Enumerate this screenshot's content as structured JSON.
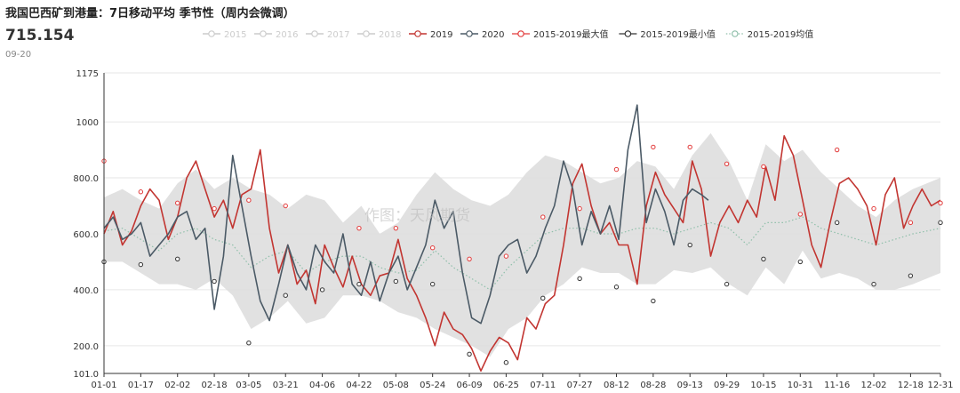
{
  "header": {
    "title": "我国巴西矿到港量：7日移动平均 季节性（周内会微调）",
    "last_value": "715.154",
    "last_date": "09-20"
  },
  "watermark": "作图：天风期货",
  "colors": {
    "s2019": "#c23531",
    "s2020": "#4b5a66",
    "max": "#e23b3b",
    "min": "#333333",
    "mean": "#8fbfaa",
    "band": "#dcdcdc",
    "inactive": "#cccccc",
    "grid": "#e6e6e6"
  },
  "chart_data": {
    "type": "line",
    "title": "我国巴西矿到港量：7日移动平均 季节性（周内会微调）",
    "xlabel": "",
    "ylabel": "",
    "ylim": [
      101,
      1175
    ],
    "y_ticks": [
      "1175",
      "1000",
      "800.0",
      "600.0",
      "400.0",
      "200.0",
      "101.0"
    ],
    "y_tick_values": [
      1175,
      1000,
      800,
      600,
      400,
      200,
      101
    ],
    "x_ticks": [
      "01-01",
      "01-17",
      "02-02",
      "02-18",
      "03-05",
      "03-21",
      "04-06",
      "04-22",
      "05-08",
      "05-24",
      "06-09",
      "06-25",
      "07-11",
      "07-27",
      "08-12",
      "08-28",
      "09-13",
      "09-29",
      "10-15",
      "10-31",
      "11-16",
      "12-02",
      "12-18",
      "12-31"
    ],
    "x_tick_days": [
      1,
      17,
      33,
      49,
      64,
      80,
      96,
      112,
      128,
      144,
      160,
      176,
      192,
      208,
      224,
      240,
      256,
      272,
      288,
      304,
      320,
      336,
      352,
      365
    ],
    "legend": [
      {
        "name": "2015",
        "active": false,
        "kind": "line"
      },
      {
        "name": "2016",
        "active": false,
        "kind": "line"
      },
      {
        "name": "2017",
        "active": false,
        "kind": "line"
      },
      {
        "name": "2018",
        "active": false,
        "kind": "line"
      },
      {
        "name": "2019",
        "active": true,
        "kind": "line",
        "color": "#c23531"
      },
      {
        "name": "2020",
        "active": true,
        "kind": "line",
        "color": "#4b5a66"
      },
      {
        "name": "2015-2019最大值",
        "active": true,
        "kind": "marker",
        "color": "#e23b3b"
      },
      {
        "name": "2015-2019最小值",
        "active": true,
        "kind": "marker",
        "color": "#333333"
      },
      {
        "name": "2015-2019均值",
        "active": true,
        "kind": "dotted",
        "color": "#8fbfaa"
      }
    ],
    "series": [
      {
        "name": "2019",
        "x": [
          1,
          5,
          9,
          13,
          17,
          21,
          25,
          29,
          33,
          37,
          41,
          45,
          49,
          53,
          57,
          61,
          65,
          69,
          73,
          77,
          81,
          85,
          89,
          93,
          97,
          101,
          105,
          109,
          113,
          117,
          121,
          125,
          129,
          133,
          137,
          141,
          145,
          149,
          153,
          157,
          161,
          165,
          169,
          173,
          177,
          181,
          185,
          189,
          193,
          197,
          201,
          205,
          209,
          213,
          217,
          221,
          225,
          229,
          233,
          237,
          241,
          245,
          249,
          253,
          257,
          261,
          265,
          269,
          273,
          277,
          281,
          285,
          289,
          293,
          297,
          301,
          305,
          309,
          313,
          317,
          321,
          325,
          329,
          333,
          337,
          341,
          345,
          349,
          353,
          357,
          361,
          365
        ],
        "values": [
          600,
          680,
          560,
          610,
          700,
          760,
          720,
          580,
          660,
          800,
          860,
          760,
          660,
          720,
          620,
          740,
          760,
          900,
          620,
          460,
          560,
          420,
          470,
          350,
          560,
          480,
          410,
          520,
          420,
          380,
          450,
          460,
          580,
          440,
          380,
          300,
          200,
          320,
          260,
          240,
          190,
          110,
          180,
          230,
          210,
          150,
          300,
          260,
          350,
          380,
          560,
          780,
          850,
          700,
          600,
          640,
          560,
          560,
          420,
          700,
          820,
          740,
          690,
          640,
          860,
          760,
          520,
          640,
          700,
          640,
          720,
          660,
          840,
          720,
          950,
          880,
          720,
          560,
          480,
          640,
          780,
          800,
          760,
          700,
          560,
          740,
          800,
          620,
          700,
          760,
          700,
          720
        ]
      },
      {
        "name": "2020",
        "x": [
          1,
          5,
          9,
          13,
          17,
          21,
          25,
          29,
          33,
          37,
          41,
          45,
          49,
          53,
          57,
          61,
          65,
          69,
          73,
          77,
          81,
          85,
          89,
          93,
          97,
          101,
          105,
          109,
          113,
          117,
          121,
          125,
          129,
          133,
          137,
          141,
          145,
          149,
          153,
          157,
          161,
          165,
          169,
          173,
          177,
          181,
          185,
          189,
          193,
          197,
          201,
          205,
          209,
          213,
          217,
          221,
          225,
          229,
          233,
          237,
          241,
          245,
          249,
          253,
          257,
          261,
          264
        ],
        "values": [
          620,
          660,
          580,
          600,
          640,
          520,
          560,
          600,
          660,
          680,
          580,
          620,
          330,
          520,
          880,
          700,
          520,
          360,
          290,
          420,
          560,
          460,
          400,
          560,
          500,
          460,
          600,
          420,
          380,
          500,
          360,
          460,
          520,
          400,
          480,
          560,
          720,
          620,
          680,
          460,
          300,
          280,
          380,
          520,
          560,
          580,
          460,
          520,
          620,
          700,
          860,
          760,
          560,
          680,
          600,
          700,
          580,
          900,
          1060,
          640,
          760,
          680,
          560,
          720,
          760,
          740,
          720
        ]
      }
    ],
    "band_upper": {
      "x": [
        1,
        9,
        17,
        25,
        33,
        41,
        49,
        57,
        65,
        73,
        81,
        89,
        97,
        105,
        113,
        121,
        129,
        137,
        145,
        153,
        161,
        169,
        177,
        185,
        193,
        201,
        209,
        217,
        225,
        233,
        241,
        249,
        257,
        265,
        273,
        281,
        289,
        297,
        305,
        313,
        321,
        329,
        337,
        345,
        353,
        365
      ],
      "values": [
        730,
        760,
        720,
        690,
        780,
        830,
        760,
        800,
        760,
        740,
        690,
        740,
        720,
        640,
        700,
        600,
        640,
        740,
        820,
        760,
        720,
        700,
        740,
        820,
        880,
        860,
        820,
        780,
        800,
        860,
        840,
        760,
        880,
        960,
        860,
        720,
        920,
        860,
        900,
        820,
        760,
        700,
        660,
        720,
        760,
        800
      ]
    },
    "band_lower": {
      "x": [
        1,
        9,
        17,
        25,
        33,
        41,
        49,
        57,
        65,
        73,
        81,
        89,
        97,
        105,
        113,
        121,
        129,
        137,
        145,
        153,
        161,
        169,
        177,
        185,
        193,
        201,
        209,
        217,
        225,
        233,
        241,
        249,
        257,
        265,
        273,
        281,
        289,
        297,
        305,
        313,
        321,
        329,
        337,
        345,
        353,
        365
      ],
      "values": [
        500,
        500,
        460,
        420,
        420,
        400,
        440,
        380,
        260,
        300,
        360,
        280,
        300,
        380,
        380,
        360,
        320,
        300,
        260,
        230,
        200,
        160,
        260,
        300,
        380,
        420,
        480,
        460,
        460,
        420,
        420,
        470,
        460,
        480,
        420,
        380,
        480,
        420,
        540,
        440,
        460,
        440,
        400,
        400,
        420,
        460
      ]
    },
    "mean": {
      "x": [
        1,
        9,
        17,
        25,
        33,
        41,
        49,
        57,
        65,
        73,
        81,
        89,
        97,
        105,
        113,
        121,
        129,
        137,
        145,
        153,
        161,
        169,
        177,
        185,
        193,
        201,
        209,
        217,
        225,
        233,
        241,
        249,
        257,
        265,
        273,
        281,
        289,
        297,
        305,
        313,
        321,
        329,
        337,
        345,
        353,
        365
      ],
      "values": [
        610,
        620,
        580,
        540,
        600,
        620,
        580,
        560,
        480,
        520,
        540,
        460,
        500,
        520,
        520,
        480,
        460,
        470,
        540,
        480,
        440,
        400,
        480,
        540,
        600,
        620,
        620,
        600,
        600,
        620,
        620,
        600,
        620,
        640,
        620,
        560,
        640,
        640,
        660,
        620,
        600,
        580,
        560,
        580,
        600,
        620
      ]
    },
    "max_points": {
      "x": [
        1,
        17,
        33,
        49,
        64,
        80,
        112,
        128,
        144,
        160,
        176,
        192,
        208,
        224,
        240,
        256,
        272,
        288,
        304,
        320,
        336,
        352,
        365
      ],
      "values": [
        860,
        750,
        710,
        690,
        720,
        700,
        620,
        620,
        550,
        510,
        520,
        660,
        690,
        830,
        910,
        910,
        850,
        840,
        670,
        900,
        690,
        640,
        710
      ]
    },
    "min_points": {
      "x": [
        1,
        17,
        33,
        49,
        64,
        80,
        96,
        112,
        128,
        144,
        160,
        176,
        192,
        208,
        224,
        240,
        256,
        272,
        288,
        304,
        320,
        336,
        352,
        365
      ],
      "values": [
        500,
        490,
        510,
        430,
        210,
        380,
        400,
        420,
        430,
        420,
        170,
        140,
        370,
        440,
        410,
        360,
        560,
        420,
        510,
        500,
        640,
        420,
        450,
        640
      ]
    }
  }
}
